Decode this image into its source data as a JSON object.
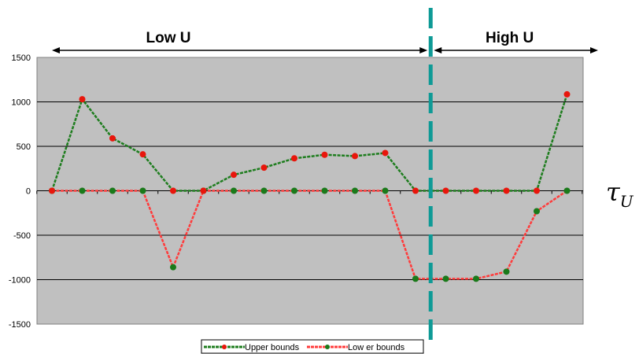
{
  "chart_data": {
    "type": "line",
    "title": "",
    "xlabel": "τ_U",
    "ylabel": "",
    "ylim": [
      -1500,
      1500
    ],
    "yticks": [
      -1500,
      -1000,
      -500,
      0,
      500,
      1000,
      1500
    ],
    "grid": true,
    "legend_placement": "bottom-center",
    "num_points": 18,
    "series": [
      {
        "name": "Upper bounds",
        "line_color": "#1e7d1e",
        "marker_color": "#e8160c",
        "values": [
          0,
          1030,
          590,
          410,
          0,
          0,
          180,
          260,
          365,
          405,
          390,
          425,
          0,
          0,
          0,
          0,
          0,
          1085
        ]
      },
      {
        "name": "Low er bounds",
        "line_color": "#ff3b3b",
        "marker_color": "#1a7a1a",
        "values": [
          0,
          0,
          0,
          0,
          -860,
          0,
          0,
          0,
          0,
          0,
          0,
          0,
          -990,
          -990,
          -990,
          -910,
          -230,
          0
        ]
      }
    ],
    "regions": [
      {
        "label": "Low U",
        "from_index": 0,
        "to_index": 12
      },
      {
        "label": "High U",
        "from_index": 12,
        "to_index": 17
      }
    ],
    "divider_after_index": 12
  },
  "colors": {
    "plot_background": "#c0c0c0",
    "gridline": "#000000",
    "divider": "#0e9a96"
  },
  "axis_symbol": {
    "base": "τ",
    "subscript": "U"
  }
}
